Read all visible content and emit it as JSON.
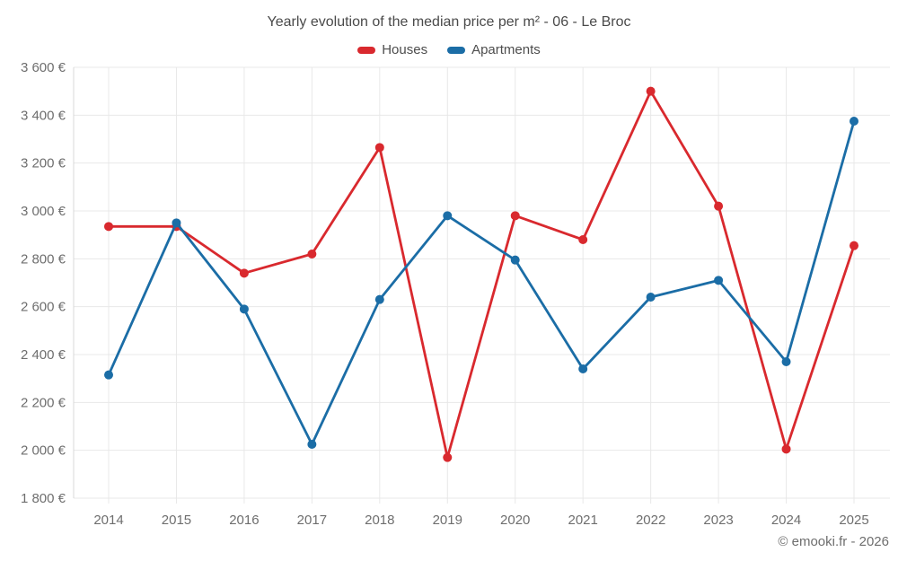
{
  "chart_data": {
    "type": "line",
    "title": "Yearly evolution of the median price per m² - 06 - Le Broc",
    "categories": [
      "2014",
      "2015",
      "2016",
      "2017",
      "2018",
      "2019",
      "2020",
      "2021",
      "2022",
      "2023",
      "2024",
      "2025"
    ],
    "series": [
      {
        "name": "Houses",
        "color": "#d9292e",
        "values": [
          2935,
          2935,
          2740,
          2820,
          3265,
          1970,
          2980,
          2880,
          3500,
          3020,
          2005,
          2855
        ]
      },
      {
        "name": "Apartments",
        "color": "#1b6da6",
        "values": [
          2315,
          2950,
          2590,
          2025,
          2630,
          2980,
          2795,
          2340,
          2640,
          2710,
          2370,
          3375
        ]
      }
    ],
    "ylim": [
      1800,
      3600
    ],
    "ytick_step": 200,
    "ytick_suffix": " €",
    "grid": true,
    "legend_position": "top",
    "attribution": "© emooki.fr - 2026",
    "colors": {
      "grid": "#e8e8e8",
      "axis_line": "#d8d8d8",
      "tick_text": "#6e6e6e",
      "title_text": "#4a4a4a"
    }
  }
}
